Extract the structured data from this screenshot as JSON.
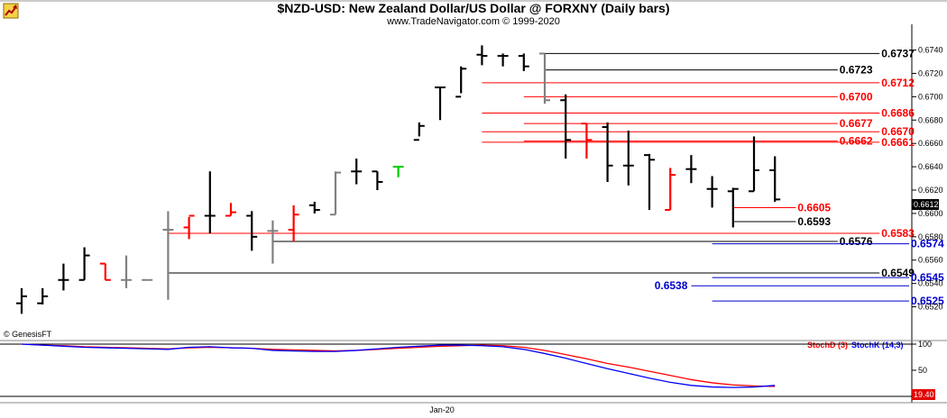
{
  "title": "$NZD-USD:  New Zealand Dollar/US Dollar @ FORXNY  (Daily bars)",
  "subtitle": "www.TradeNavigator.com © 1999-2020",
  "watermark": "© GenesisFT",
  "logo_icon": "rising-arrow-icon",
  "last_price_label": "0.6612",
  "colors": {
    "up": "#000000",
    "down": "#ff0000",
    "neutral": "#808080",
    "signal": "#00cc00",
    "support": "#0000cc",
    "stoch_d": "#ff0000",
    "stoch_k": "#0000ff"
  },
  "chart_data": [
    {
      "type": "ohlc",
      "price_axis": {
        "ylim": [
          0.6505,
          0.6752
        ],
        "ticks": [
          "0.6740",
          "0.6720",
          "0.6700",
          "0.6680",
          "0.6660",
          "0.6640",
          "0.6620",
          "0.6600",
          "0.6580",
          "0.6560",
          "0.6540",
          "0.6520"
        ]
      },
      "x_axis": {
        "label": "Jan-20",
        "label_bar_index": 20
      },
      "bars": [
        {
          "o": 0.6523,
          "h": 0.6536,
          "l": 0.6514,
          "c": 0.6529,
          "color": "up"
        },
        {
          "o": 0.6523,
          "h": 0.6536,
          "l": 0.6522,
          "c": 0.6529,
          "color": "up"
        },
        {
          "o": 0.6543,
          "h": 0.6557,
          "l": 0.6534,
          "c": 0.6543,
          "color": "up"
        },
        {
          "o": 0.6543,
          "h": 0.6571,
          "l": 0.6543,
          "c": 0.6564,
          "color": "up"
        },
        {
          "o": 0.6557,
          "h": 0.6557,
          "l": 0.6543,
          "c": 0.6543,
          "color": "down"
        },
        {
          "o": 0.6543,
          "h": 0.6564,
          "l": 0.6536,
          "c": 0.6543,
          "color": "neutral"
        },
        {
          "o": 0.6543,
          "h": 0.6543,
          "l": 0.6543,
          "c": 0.6543,
          "color": "neutral"
        },
        {
          "o": 0.6586,
          "h": 0.6602,
          "l": 0.6526,
          "c": 0.6586,
          "color": "neutral"
        },
        {
          "o": 0.6588,
          "h": 0.6597,
          "l": 0.6578,
          "c": 0.6598,
          "color": "down"
        },
        {
          "o": 0.6598,
          "h": 0.6636,
          "l": 0.6583,
          "c": 0.6598,
          "color": "up"
        },
        {
          "o": 0.6598,
          "h": 0.6609,
          "l": 0.6598,
          "c": 0.6601,
          "color": "down"
        },
        {
          "o": 0.6598,
          "h": 0.6602,
          "l": 0.6568,
          "c": 0.658,
          "color": "up"
        },
        {
          "o": 0.6585,
          "h": 0.6594,
          "l": 0.6557,
          "c": 0.6585,
          "color": "neutral"
        },
        {
          "o": 0.6586,
          "h": 0.6607,
          "l": 0.6576,
          "c": 0.6599,
          "color": "down"
        },
        {
          "o": 0.6607,
          "h": 0.661,
          "l": 0.66,
          "c": 0.6603,
          "color": "up"
        },
        {
          "o": 0.6599,
          "h": 0.6636,
          "l": 0.6599,
          "c": 0.6635,
          "color": "neutral"
        },
        {
          "o": 0.6636,
          "h": 0.6647,
          "l": 0.6625,
          "c": 0.6636,
          "color": "up"
        },
        {
          "o": 0.6636,
          "h": 0.6636,
          "l": 0.662,
          "c": 0.6627,
          "color": "up"
        },
        {
          "o": 0.664,
          "h": 0.664,
          "l": 0.6631,
          "c": 0.664,
          "color": "signal"
        },
        {
          "o": 0.6663,
          "h": 0.6678,
          "l": 0.6666,
          "c": 0.6675,
          "color": "up"
        },
        {
          "o": 0.6708,
          "h": 0.6708,
          "l": 0.668,
          "c": 0.6708,
          "color": "up"
        },
        {
          "o": 0.67,
          "h": 0.6726,
          "l": 0.6703,
          "c": 0.6724,
          "color": "up"
        },
        {
          "o": 0.6736,
          "h": 0.6744,
          "l": 0.6727,
          "c": 0.6735,
          "color": "up"
        },
        {
          "o": 0.6735,
          "h": 0.6737,
          "l": 0.6726,
          "c": 0.6735,
          "color": "up"
        },
        {
          "o": 0.6735,
          "h": 0.6737,
          "l": 0.6722,
          "c": 0.6726,
          "color": "up"
        },
        {
          "o": 0.6737,
          "h": 0.6737,
          "l": 0.6694,
          "c": 0.6697,
          "color": "neutral"
        },
        {
          "o": 0.6697,
          "h": 0.6702,
          "l": 0.6647,
          "c": 0.6663,
          "color": "up"
        },
        {
          "o": 0.6677,
          "h": 0.6677,
          "l": 0.6647,
          "c": 0.6663,
          "color": "down"
        },
        {
          "o": 0.6674,
          "h": 0.6678,
          "l": 0.6627,
          "c": 0.6641,
          "color": "up"
        },
        {
          "o": 0.6641,
          "h": 0.6671,
          "l": 0.6624,
          "c": 0.6641,
          "color": "up"
        },
        {
          "o": 0.665,
          "h": 0.6651,
          "l": 0.6603,
          "c": 0.6646,
          "color": "up"
        },
        {
          "o": 0.6603,
          "h": 0.6639,
          "l": 0.6603,
          "c": 0.6633,
          "color": "down"
        },
        {
          "o": 0.6638,
          "h": 0.665,
          "l": 0.6626,
          "c": 0.6638,
          "color": "up"
        },
        {
          "o": 0.6621,
          "h": 0.6632,
          "l": 0.6605,
          "c": 0.6621,
          "color": "up"
        },
        {
          "o": 0.6619,
          "h": 0.6622,
          "l": 0.6588,
          "c": 0.6621,
          "color": "up"
        },
        {
          "o": 0.6619,
          "h": 0.6666,
          "l": 0.6619,
          "c": 0.6637,
          "color": "up"
        },
        {
          "o": 0.6637,
          "h": 0.6649,
          "l": 0.661,
          "c": 0.6612,
          "color": "up"
        }
      ],
      "levels": [
        {
          "label": "0.6737",
          "value": 0.6737,
          "color": "up",
          "start_bar": 25,
          "end_bar": 41,
          "label_side": "right"
        },
        {
          "label": "0.6723",
          "value": 0.6723,
          "color": "up",
          "start_bar": 25,
          "end_bar": 39,
          "label_side": "right"
        },
        {
          "label": "0.6712",
          "value": 0.6712,
          "color": "down",
          "start_bar": 22,
          "end_bar": 41,
          "label_side": "right"
        },
        {
          "label": "0.6700",
          "value": 0.67,
          "color": "down",
          "start_bar": 24,
          "end_bar": 39,
          "label_side": "right"
        },
        {
          "label": "0.6686",
          "value": 0.6686,
          "color": "down",
          "start_bar": 22,
          "end_bar": 41,
          "label_side": "right"
        },
        {
          "label": "0.6677",
          "value": 0.6677,
          "color": "down",
          "start_bar": 24,
          "end_bar": 39,
          "label_side": "right"
        },
        {
          "label": "0.6670",
          "value": 0.667,
          "color": "down",
          "start_bar": 22,
          "end_bar": 41,
          "label_side": "right"
        },
        {
          "label": "0.6662",
          "value": 0.6662,
          "color": "down",
          "start_bar": 24,
          "end_bar": 39,
          "label_side": "right"
        },
        {
          "label": "0.6661",
          "value": 0.6661,
          "color": "down",
          "start_bar": 22,
          "end_bar": 41,
          "label_side": "right"
        },
        {
          "label": "0.6605",
          "value": 0.6605,
          "color": "down",
          "start_bar": 34,
          "end_bar": 37,
          "label_side": "right"
        },
        {
          "label": "0.6593",
          "value": 0.6593,
          "color": "up",
          "start_bar": 34,
          "end_bar": 37,
          "label_side": "right"
        },
        {
          "label": "0.6583",
          "value": 0.6583,
          "color": "down",
          "start_bar": 7,
          "end_bar": 41,
          "label_side": "right"
        },
        {
          "label": "0.6576",
          "value": 0.6576,
          "color": "up",
          "start_bar": 12,
          "end_bar": 39,
          "label_side": "right"
        },
        {
          "label": "0.6574",
          "value": 0.6574,
          "color": "support",
          "start_bar": 33,
          "end_bar": 44,
          "label_side": "right"
        },
        {
          "label": "0.6549",
          "value": 0.6549,
          "color": "up",
          "start_bar": 7,
          "end_bar": 41,
          "label_side": "right"
        },
        {
          "label": "0.6545",
          "value": 0.6545,
          "color": "support",
          "start_bar": 33,
          "end_bar": 44,
          "label_side": "right"
        },
        {
          "label": "0.6538",
          "value": 0.6538,
          "color": "support",
          "start_bar": 32,
          "end_bar": 44,
          "label_side": "left"
        },
        {
          "label": "0.6525",
          "value": 0.6525,
          "color": "support",
          "start_bar": 33,
          "end_bar": 44,
          "label_side": "right"
        }
      ]
    },
    {
      "type": "line",
      "name": "stochastic",
      "ylim": [
        0,
        100
      ],
      "ticks": [
        "100",
        "50"
      ],
      "last_value_label": "19.40",
      "series": [
        {
          "name": "StochD (3)",
          "color": "stoch_d",
          "values": [
            100,
            98,
            97,
            95,
            94,
            93,
            92,
            91,
            93,
            94,
            93,
            92,
            90,
            89,
            88,
            87,
            88,
            90,
            92,
            94,
            96,
            97,
            98,
            97,
            94,
            88,
            80,
            72,
            63,
            56,
            48,
            40,
            32,
            26,
            22,
            20,
            19
          ]
        },
        {
          "name": "StochK (14,3)",
          "color": "stoch_k",
          "values": [
            100,
            98,
            96,
            94,
            93,
            92,
            91,
            90,
            94,
            95,
            93,
            92,
            88,
            87,
            86,
            86,
            88,
            91,
            94,
            96,
            98,
            98,
            97,
            95,
            90,
            82,
            73,
            63,
            53,
            44,
            35,
            27,
            21,
            18,
            17,
            18,
            21
          ]
        }
      ]
    }
  ]
}
